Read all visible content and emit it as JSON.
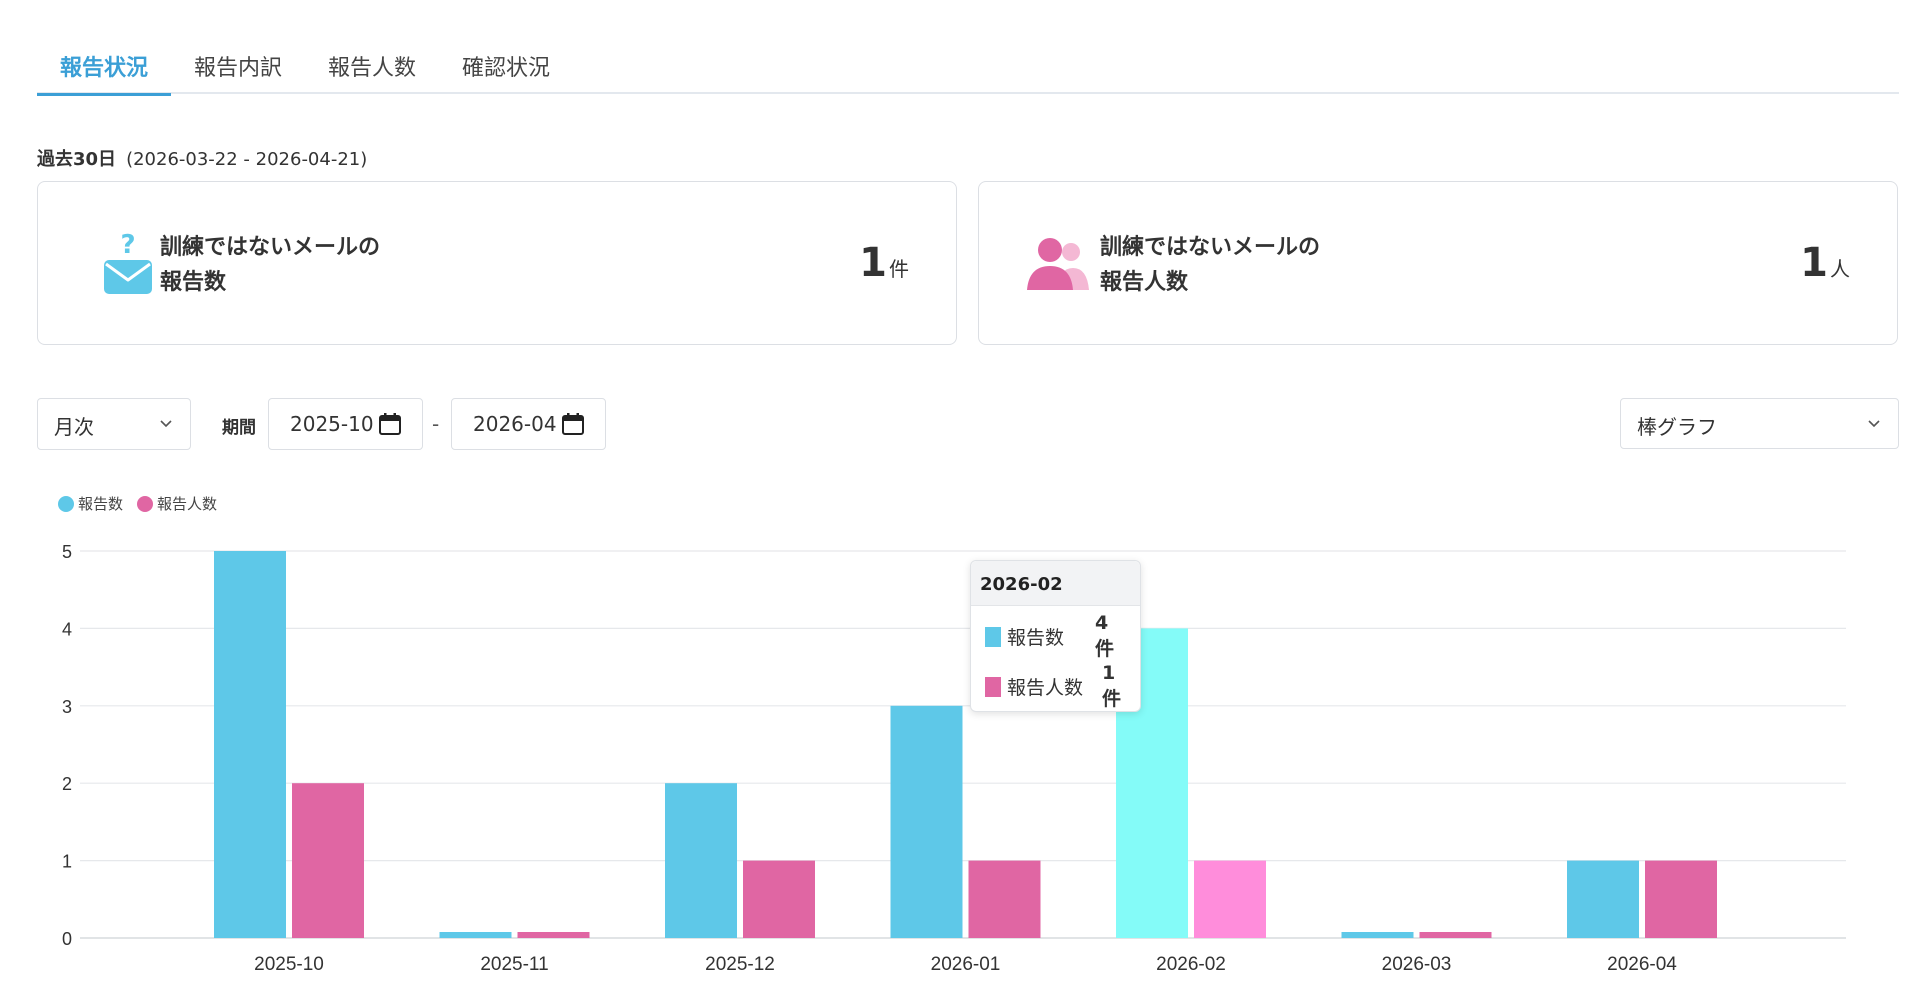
{
  "tabs": [
    {
      "label": "報告状況",
      "active": true
    },
    {
      "label": "報告内訳",
      "active": false
    },
    {
      "label": "報告人数",
      "active": false
    },
    {
      "label": "確認状況",
      "active": false
    }
  ],
  "period": {
    "label": "過去30日",
    "range": "(2026-03-22 - 2026-04-21)"
  },
  "cards": [
    {
      "icon": "mail-question-icon",
      "title_line1": "訓練ではないメールの",
      "title_line2": "報告数",
      "value": "1",
      "unit": "件"
    },
    {
      "icon": "users-icon",
      "title_line1": "訓練ではないメールの",
      "title_line2": "報告人数",
      "value": "1",
      "unit": "人"
    }
  ],
  "controls": {
    "aggregation": "月次",
    "period_label": "期間",
    "date_from": "2025-10",
    "separator": "-",
    "date_to": "2026-04",
    "chart_type": "棒グラフ"
  },
  "colors": {
    "reports": "#5ec8e8",
    "reporters": "#e066a3",
    "reports_highlight": "#84fbf8",
    "reporters_highlight": "#ff8ddb",
    "accent": "#3b9fd6"
  },
  "chart_data": {
    "type": "bar",
    "categories": [
      "2025-10",
      "2025-11",
      "2025-12",
      "2026-01",
      "2026-02",
      "2026-03",
      "2026-04"
    ],
    "series": [
      {
        "name": "報告数",
        "values": [
          5,
          0,
          2,
          3,
          4,
          0,
          1
        ]
      },
      {
        "name": "報告人数",
        "values": [
          2,
          0,
          1,
          1,
          1,
          0,
          1
        ]
      }
    ],
    "ylim": [
      0,
      5
    ],
    "yticks": [
      0,
      1,
      2,
      3,
      4,
      5
    ],
    "grid": true,
    "legend": "top-left",
    "highlighted_category": "2026-02"
  },
  "tooltip": {
    "title": "2026-02",
    "rows": [
      {
        "label": "報告数",
        "value": "4件"
      },
      {
        "label": "報告人数",
        "value": "1件"
      }
    ]
  }
}
